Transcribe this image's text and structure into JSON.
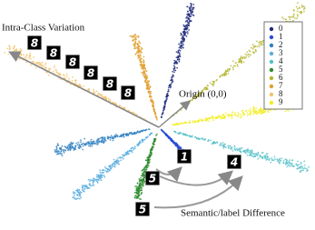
{
  "labels": {
    "intra_class": "Intra-Class Variation",
    "origin": "Origin (0,0)",
    "semantic": "Semantic/label Difference"
  },
  "thumbnails": [
    "8",
    "8",
    "8",
    "8",
    "8",
    "8",
    "5",
    "1",
    "4",
    "5"
  ],
  "legend": {
    "items": [
      {
        "label": "0",
        "color": "#1f2a7a"
      },
      {
        "label": "1",
        "color": "#2a4fd6"
      },
      {
        "label": "2",
        "color": "#2f7fc0"
      },
      {
        "label": "3",
        "color": "#5aaee0"
      },
      {
        "label": "4",
        "color": "#55c0c8"
      },
      {
        "label": "5",
        "color": "#2e8b2e"
      },
      {
        "label": "6",
        "color": "#b5b52f"
      },
      {
        "label": "7",
        "color": "#e0a030"
      },
      {
        "label": "8",
        "color": "#f3c26a"
      },
      {
        "label": "9",
        "color": "#f2ee22"
      }
    ]
  }
}
